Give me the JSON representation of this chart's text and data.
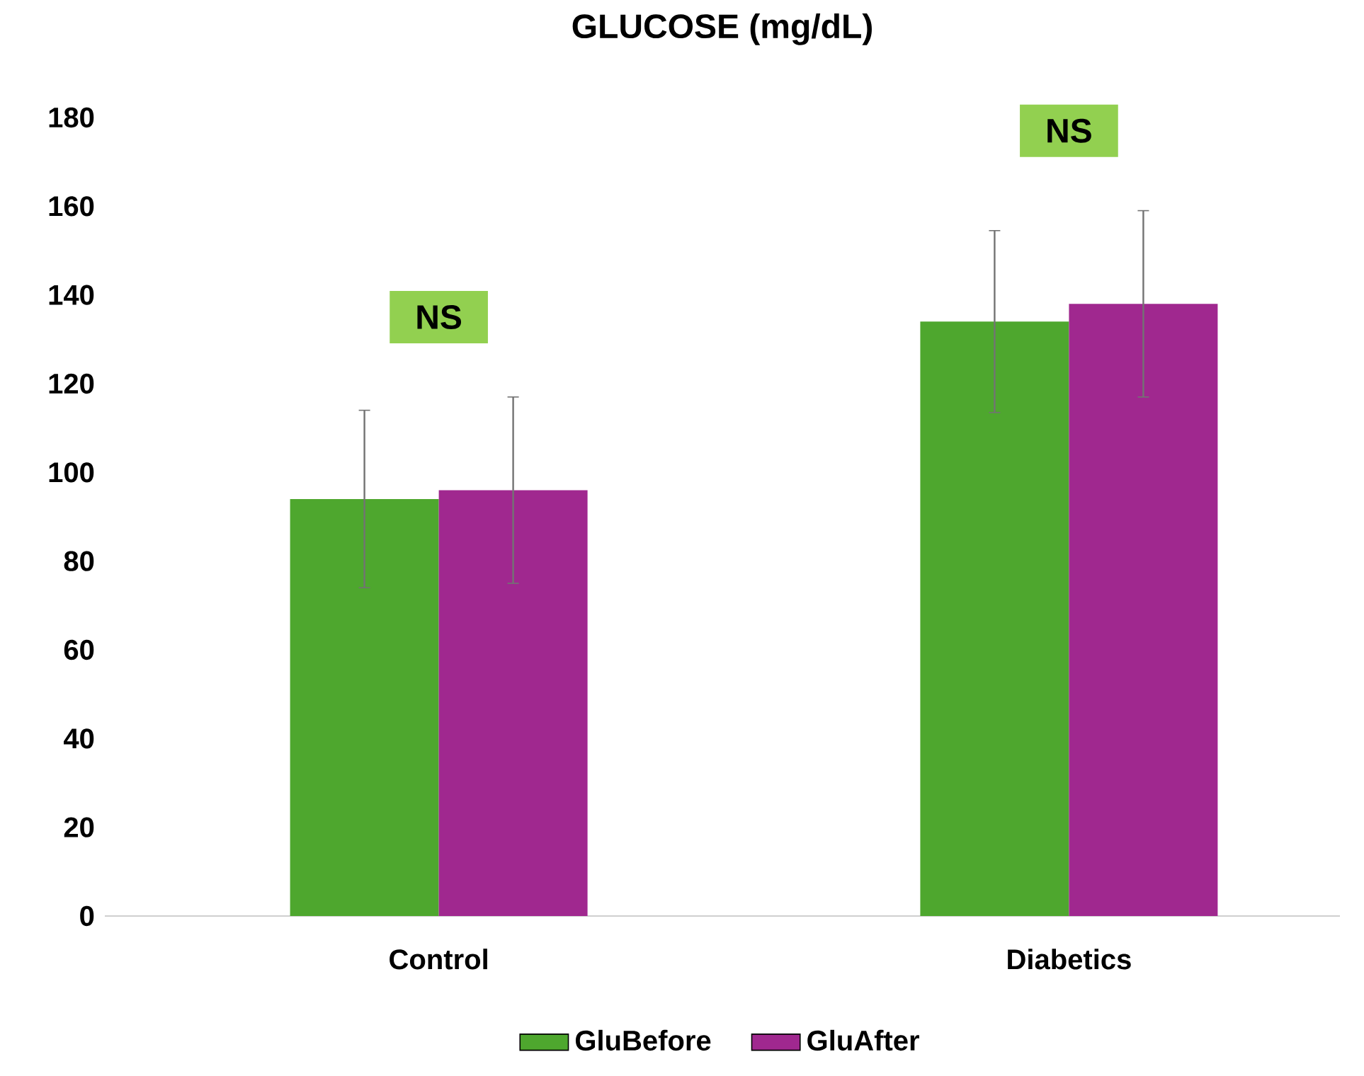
{
  "chart_data": {
    "type": "bar",
    "title": "GLUCOSE (mg/dL)",
    "categories": [
      "Control",
      "Diabetics"
    ],
    "series": [
      {
        "name": "GluBefore",
        "color": "#4ea72e",
        "values": [
          94,
          134
        ],
        "errors": [
          20,
          20.5
        ]
      },
      {
        "name": "GluAfter",
        "color": "#a0288f",
        "values": [
          96,
          138
        ],
        "errors": [
          21,
          21
        ]
      }
    ],
    "ylim": [
      0,
      180
    ],
    "yticks": [
      0,
      20,
      40,
      60,
      80,
      100,
      120,
      140,
      160,
      180
    ],
    "legend": "bottom",
    "annotations": [
      "NS",
      "NS"
    ]
  }
}
